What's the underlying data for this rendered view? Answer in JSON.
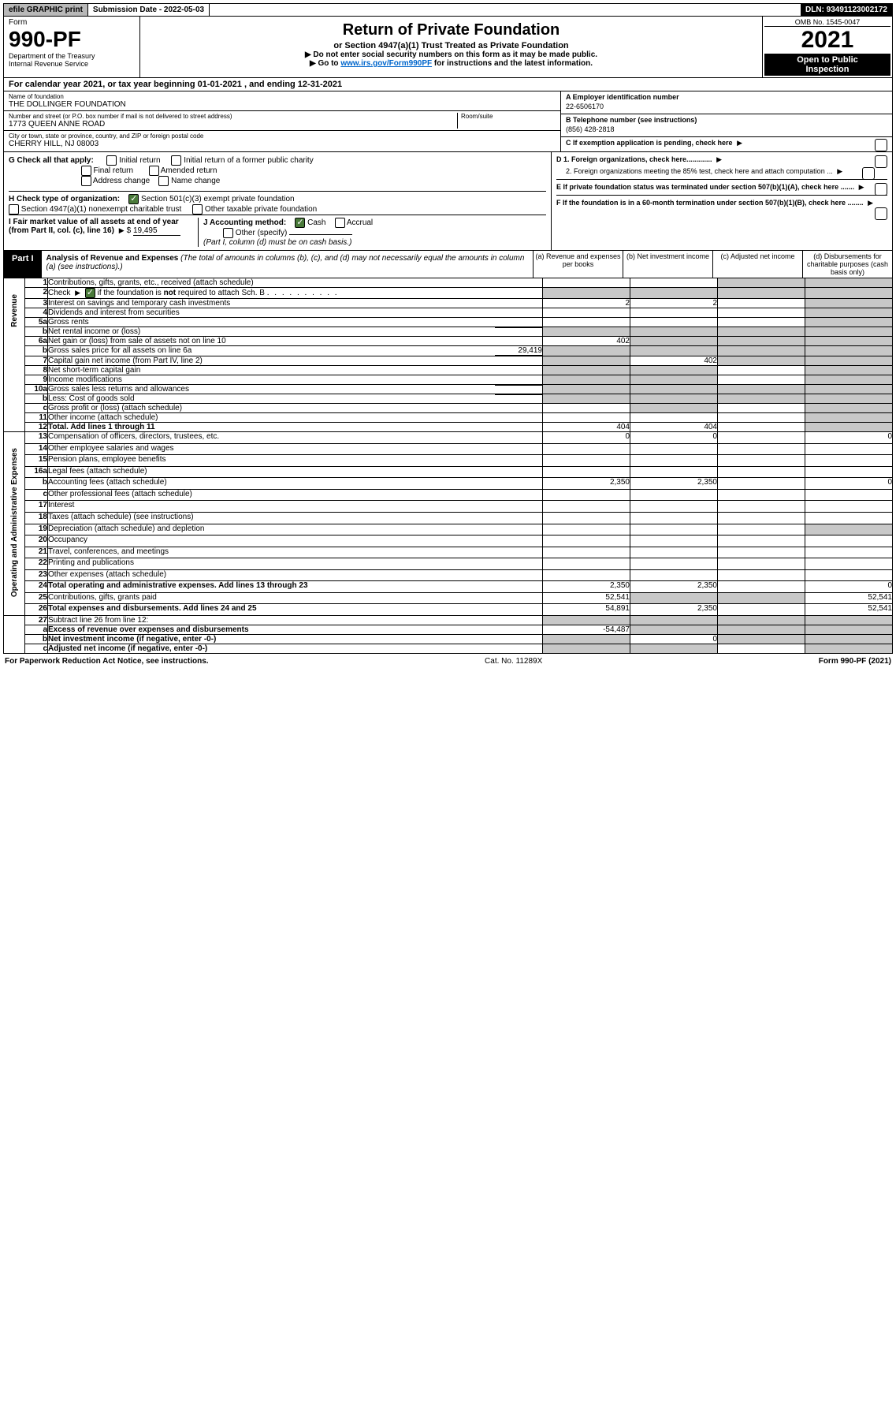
{
  "topbar": {
    "efile": "efile GRAPHIC print",
    "sub_label": "Submission Date - 2022-05-03",
    "dln": "DLN: 93491123002172"
  },
  "header": {
    "form_word": "Form",
    "form_num": "990-PF",
    "dept": "Department of the Treasury",
    "irs": "Internal Revenue Service",
    "title": "Return of Private Foundation",
    "subtitle": "or Section 4947(a)(1) Trust Treated as Private Foundation",
    "note1": "▶ Do not enter social security numbers on this form as it may be made public.",
    "note2_pre": "▶ Go to ",
    "note2_link": "www.irs.gov/Form990PF",
    "note2_post": " for instructions and the latest information.",
    "omb": "OMB No. 1545-0047",
    "year": "2021",
    "open": "Open to Public",
    "inspection": "Inspection"
  },
  "calyear": "For calendar year 2021, or tax year beginning 01-01-2021        , and ending 12-31-2021",
  "entity": {
    "name_label": "Name of foundation",
    "name": "THE DOLLINGER FOUNDATION",
    "addr_label": "Number and street (or P.O. box number if mail is not delivered to street address)",
    "addr": "1773 QUEEN ANNE ROAD",
    "room_label": "Room/suite",
    "city_label": "City or town, state or province, country, and ZIP or foreign postal code",
    "city": "CHERRY HILL, NJ  08003",
    "a_label": "A Employer identification number",
    "a_val": "22-6506170",
    "b_label": "B Telephone number (see instructions)",
    "b_val": "(856) 428-2818",
    "c_label": "C  If exemption application is pending, check here"
  },
  "checks": {
    "g_label": "G Check all that apply:",
    "g_opts": [
      "Initial return",
      "Initial return of a former public charity",
      "Final return",
      "Amended return",
      "Address change",
      "Name change"
    ],
    "h_label": "H Check type of organization:",
    "h_opt1": "Section 501(c)(3) exempt private foundation",
    "h_opt2": "Section 4947(a)(1) nonexempt charitable trust",
    "h_opt3": "Other taxable private foundation",
    "i_label": "I Fair market value of all assets at end of year (from Part II, col. (c), line 16)",
    "i_val": "19,495",
    "j_label": "J Accounting method:",
    "j_cash": "Cash",
    "j_accrual": "Accrual",
    "j_other": "Other (specify)",
    "j_note": "(Part I, column (d) must be on cash basis.)",
    "d1": "D 1. Foreign organizations, check here.............",
    "d2": "2. Foreign organizations meeting the 85% test, check here and attach computation ...",
    "e": "E  If private foundation status was terminated under section 507(b)(1)(A), check here .......",
    "f": "F  If the foundation is in a 60-month termination under section 507(b)(1)(B), check here ........"
  },
  "part1": {
    "label": "Part I",
    "title": "Analysis of Revenue and Expenses",
    "title_note": " (The total of amounts in columns (b), (c), and (d) may not necessarily equal the amounts in column (a) (see instructions).)",
    "col_a": "(a)   Revenue and expenses per books",
    "col_b": "(b)   Net investment income",
    "col_c": "(c)   Adjusted net income",
    "col_d": "(d)   Disbursements for charitable purposes (cash basis only)"
  },
  "sides": {
    "rev": "Revenue",
    "exp": "Operating and Administrative Expenses"
  },
  "rows": [
    {
      "n": "1",
      "d": "Contributions, gifts, grants, etc., received (attach schedule)",
      "a": "",
      "b": "",
      "c_sh": true,
      "dd": "",
      "d_sh": true
    },
    {
      "n": "2",
      "d": "Check ▶ ☑ if the foundation is not required to attach Sch. B",
      "a": "",
      "a_sh": true,
      "b": "",
      "b_sh": true,
      "c_sh": true,
      "d_sh": true,
      "bold": false,
      "check": true
    },
    {
      "n": "3",
      "d": "Interest on savings and temporary cash investments",
      "a": "2",
      "b": "2",
      "c": "",
      "dd": "",
      "d_sh": true
    },
    {
      "n": "4",
      "d": "Dividends and interest from securities",
      "a": "",
      "b": "",
      "c": "",
      "d_sh": true
    },
    {
      "n": "5a",
      "d": "Gross rents",
      "a": "",
      "b": "",
      "c": "",
      "d_sh": true
    },
    {
      "n": "b",
      "d": "Net rental income or (loss)",
      "a": "",
      "a_sh": true,
      "b_sh": true,
      "c_sh": true,
      "d_sh": true,
      "inline": true
    },
    {
      "n": "6a",
      "d": "Net gain or (loss) from sale of assets not on line 10",
      "a": "402",
      "b_sh": true,
      "c_sh": true,
      "d_sh": true
    },
    {
      "n": "b",
      "d": "Gross sales price for all assets on line 6a",
      "a_sh": true,
      "b_sh": true,
      "c_sh": true,
      "d_sh": true,
      "inline": true,
      "inline_val": "29,419"
    },
    {
      "n": "7",
      "d": "Capital gain net income (from Part IV, line 2)",
      "a": "",
      "a_sh": true,
      "b": "402",
      "c_sh": true,
      "d_sh": true
    },
    {
      "n": "8",
      "d": "Net short-term capital gain",
      "a_sh": true,
      "b_sh": true,
      "c": "",
      "d_sh": true
    },
    {
      "n": "9",
      "d": "Income modifications",
      "a_sh": true,
      "b_sh": true,
      "c": "",
      "d_sh": true
    },
    {
      "n": "10a",
      "d": "Gross sales less returns and allowances",
      "a_sh": true,
      "b_sh": true,
      "c_sh": true,
      "d_sh": true,
      "inline": true
    },
    {
      "n": "b",
      "d": "Less: Cost of goods sold",
      "a_sh": true,
      "b_sh": true,
      "c_sh": true,
      "d_sh": true,
      "inline": true
    },
    {
      "n": "c",
      "d": "Gross profit or (loss) (attach schedule)",
      "a": "",
      "b_sh": true,
      "c": "",
      "d_sh": true
    },
    {
      "n": "11",
      "d": "Other income (attach schedule)",
      "a": "",
      "b": "",
      "c": "",
      "d_sh": true
    },
    {
      "n": "12",
      "d": "Total. Add lines 1 through 11",
      "a": "404",
      "b": "404",
      "c": "",
      "d_sh": true,
      "bold": true
    }
  ],
  "exp_rows": [
    {
      "n": "13",
      "d": "Compensation of officers, directors, trustees, etc.",
      "a": "0",
      "b": "0",
      "c": "",
      "dd": "0"
    },
    {
      "n": "14",
      "d": "Other employee salaries and wages",
      "a": "",
      "b": "",
      "c": "",
      "dd": ""
    },
    {
      "n": "15",
      "d": "Pension plans, employee benefits",
      "a": "",
      "b": "",
      "c": "",
      "dd": ""
    },
    {
      "n": "16a",
      "d": "Legal fees (attach schedule)",
      "a": "",
      "b": "",
      "c": "",
      "dd": ""
    },
    {
      "n": "b",
      "d": "Accounting fees (attach schedule)",
      "a": "2,350",
      "b": "2,350",
      "c": "",
      "dd": "0"
    },
    {
      "n": "c",
      "d": "Other professional fees (attach schedule)",
      "a": "",
      "b": "",
      "c": "",
      "dd": ""
    },
    {
      "n": "17",
      "d": "Interest",
      "a": "",
      "b": "",
      "c": "",
      "dd": ""
    },
    {
      "n": "18",
      "d": "Taxes (attach schedule) (see instructions)",
      "a": "",
      "b": "",
      "c": "",
      "dd": ""
    },
    {
      "n": "19",
      "d": "Depreciation (attach schedule) and depletion",
      "a": "",
      "b": "",
      "c": "",
      "d_sh": true
    },
    {
      "n": "20",
      "d": "Occupancy",
      "a": "",
      "b": "",
      "c": "",
      "dd": ""
    },
    {
      "n": "21",
      "d": "Travel, conferences, and meetings",
      "a": "",
      "b": "",
      "c": "",
      "dd": ""
    },
    {
      "n": "22",
      "d": "Printing and publications",
      "a": "",
      "b": "",
      "c": "",
      "dd": ""
    },
    {
      "n": "23",
      "d": "Other expenses (attach schedule)",
      "a": "",
      "b": "",
      "c": "",
      "dd": ""
    },
    {
      "n": "24",
      "d": "Total operating and administrative expenses. Add lines 13 through 23",
      "a": "2,350",
      "b": "2,350",
      "c": "",
      "dd": "0",
      "bold": true
    },
    {
      "n": "25",
      "d": "Contributions, gifts, grants paid",
      "a": "52,541",
      "b_sh": true,
      "c_sh": true,
      "dd": "52,541"
    },
    {
      "n": "26",
      "d": "Total expenses and disbursements. Add lines 24 and 25",
      "a": "54,891",
      "b": "2,350",
      "c": "",
      "dd": "52,541",
      "bold": true
    }
  ],
  "net_rows": [
    {
      "n": "27",
      "d": "Subtract line 26 from line 12:",
      "a_sh": true,
      "b_sh": true,
      "c_sh": true,
      "d_sh": true
    },
    {
      "n": "a",
      "d": "Excess of revenue over expenses and disbursements",
      "a": "-54,487",
      "b_sh": true,
      "c_sh": true,
      "d_sh": true,
      "bold": true
    },
    {
      "n": "b",
      "d": "Net investment income (if negative, enter -0-)",
      "a_sh": true,
      "b": "0",
      "c_sh": true,
      "d_sh": true,
      "bold": true
    },
    {
      "n": "c",
      "d": "Adjusted net income (if negative, enter -0-)",
      "a_sh": true,
      "b_sh": true,
      "c": "",
      "d_sh": true,
      "bold": true
    }
  ],
  "footer": {
    "left": "For Paperwork Reduction Act Notice, see instructions.",
    "mid": "Cat. No. 11289X",
    "right": "Form 990-PF (2021)"
  },
  "colors": {
    "shade": "#c8c8c8",
    "link": "#0066cc",
    "check": "#4a7a3a"
  }
}
